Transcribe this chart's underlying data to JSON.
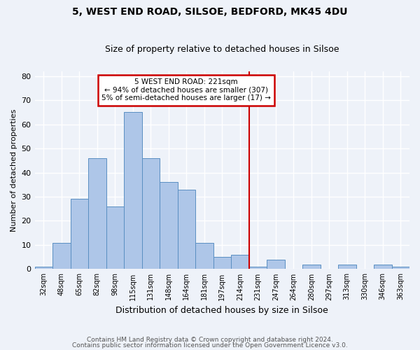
{
  "title": "5, WEST END ROAD, SILSOE, BEDFORD, MK45 4DU",
  "subtitle": "Size of property relative to detached houses in Silsoe",
  "xlabel": "Distribution of detached houses by size in Silsoe",
  "ylabel": "Number of detached properties",
  "categories": [
    "32sqm",
    "48sqm",
    "65sqm",
    "82sqm",
    "98sqm",
    "115sqm",
    "131sqm",
    "148sqm",
    "164sqm",
    "181sqm",
    "197sqm",
    "214sqm",
    "231sqm",
    "247sqm",
    "264sqm",
    "280sqm",
    "297sqm",
    "313sqm",
    "330sqm",
    "346sqm",
    "363sqm"
  ],
  "values": [
    1,
    11,
    29,
    46,
    26,
    65,
    46,
    36,
    33,
    11,
    5,
    6,
    1,
    4,
    0,
    2,
    0,
    2,
    0,
    2,
    1
  ],
  "bar_color": "#aec6e8",
  "bar_edge_color": "#5a8fc2",
  "annotation_text_lines": [
    "5 WEST END ROAD: 221sqm",
    "← 94% of detached houses are smaller (307)",
    "5% of semi-detached houses are larger (17) →"
  ],
  "annotation_box_color": "#ffffff",
  "annotation_box_edge": "#cc0000",
  "vline_color": "#cc0000",
  "ylim": [
    0,
    82
  ],
  "yticks": [
    0,
    10,
    20,
    30,
    40,
    50,
    60,
    70,
    80
  ],
  "footer1": "Contains HM Land Registry data © Crown copyright and database right 2024.",
  "footer2": "Contains public sector information licensed under the Open Government Licence v3.0.",
  "bg_color": "#eef2f9",
  "grid_color": "#ffffff",
  "title_fontsize": 10,
  "subtitle_fontsize": 9
}
